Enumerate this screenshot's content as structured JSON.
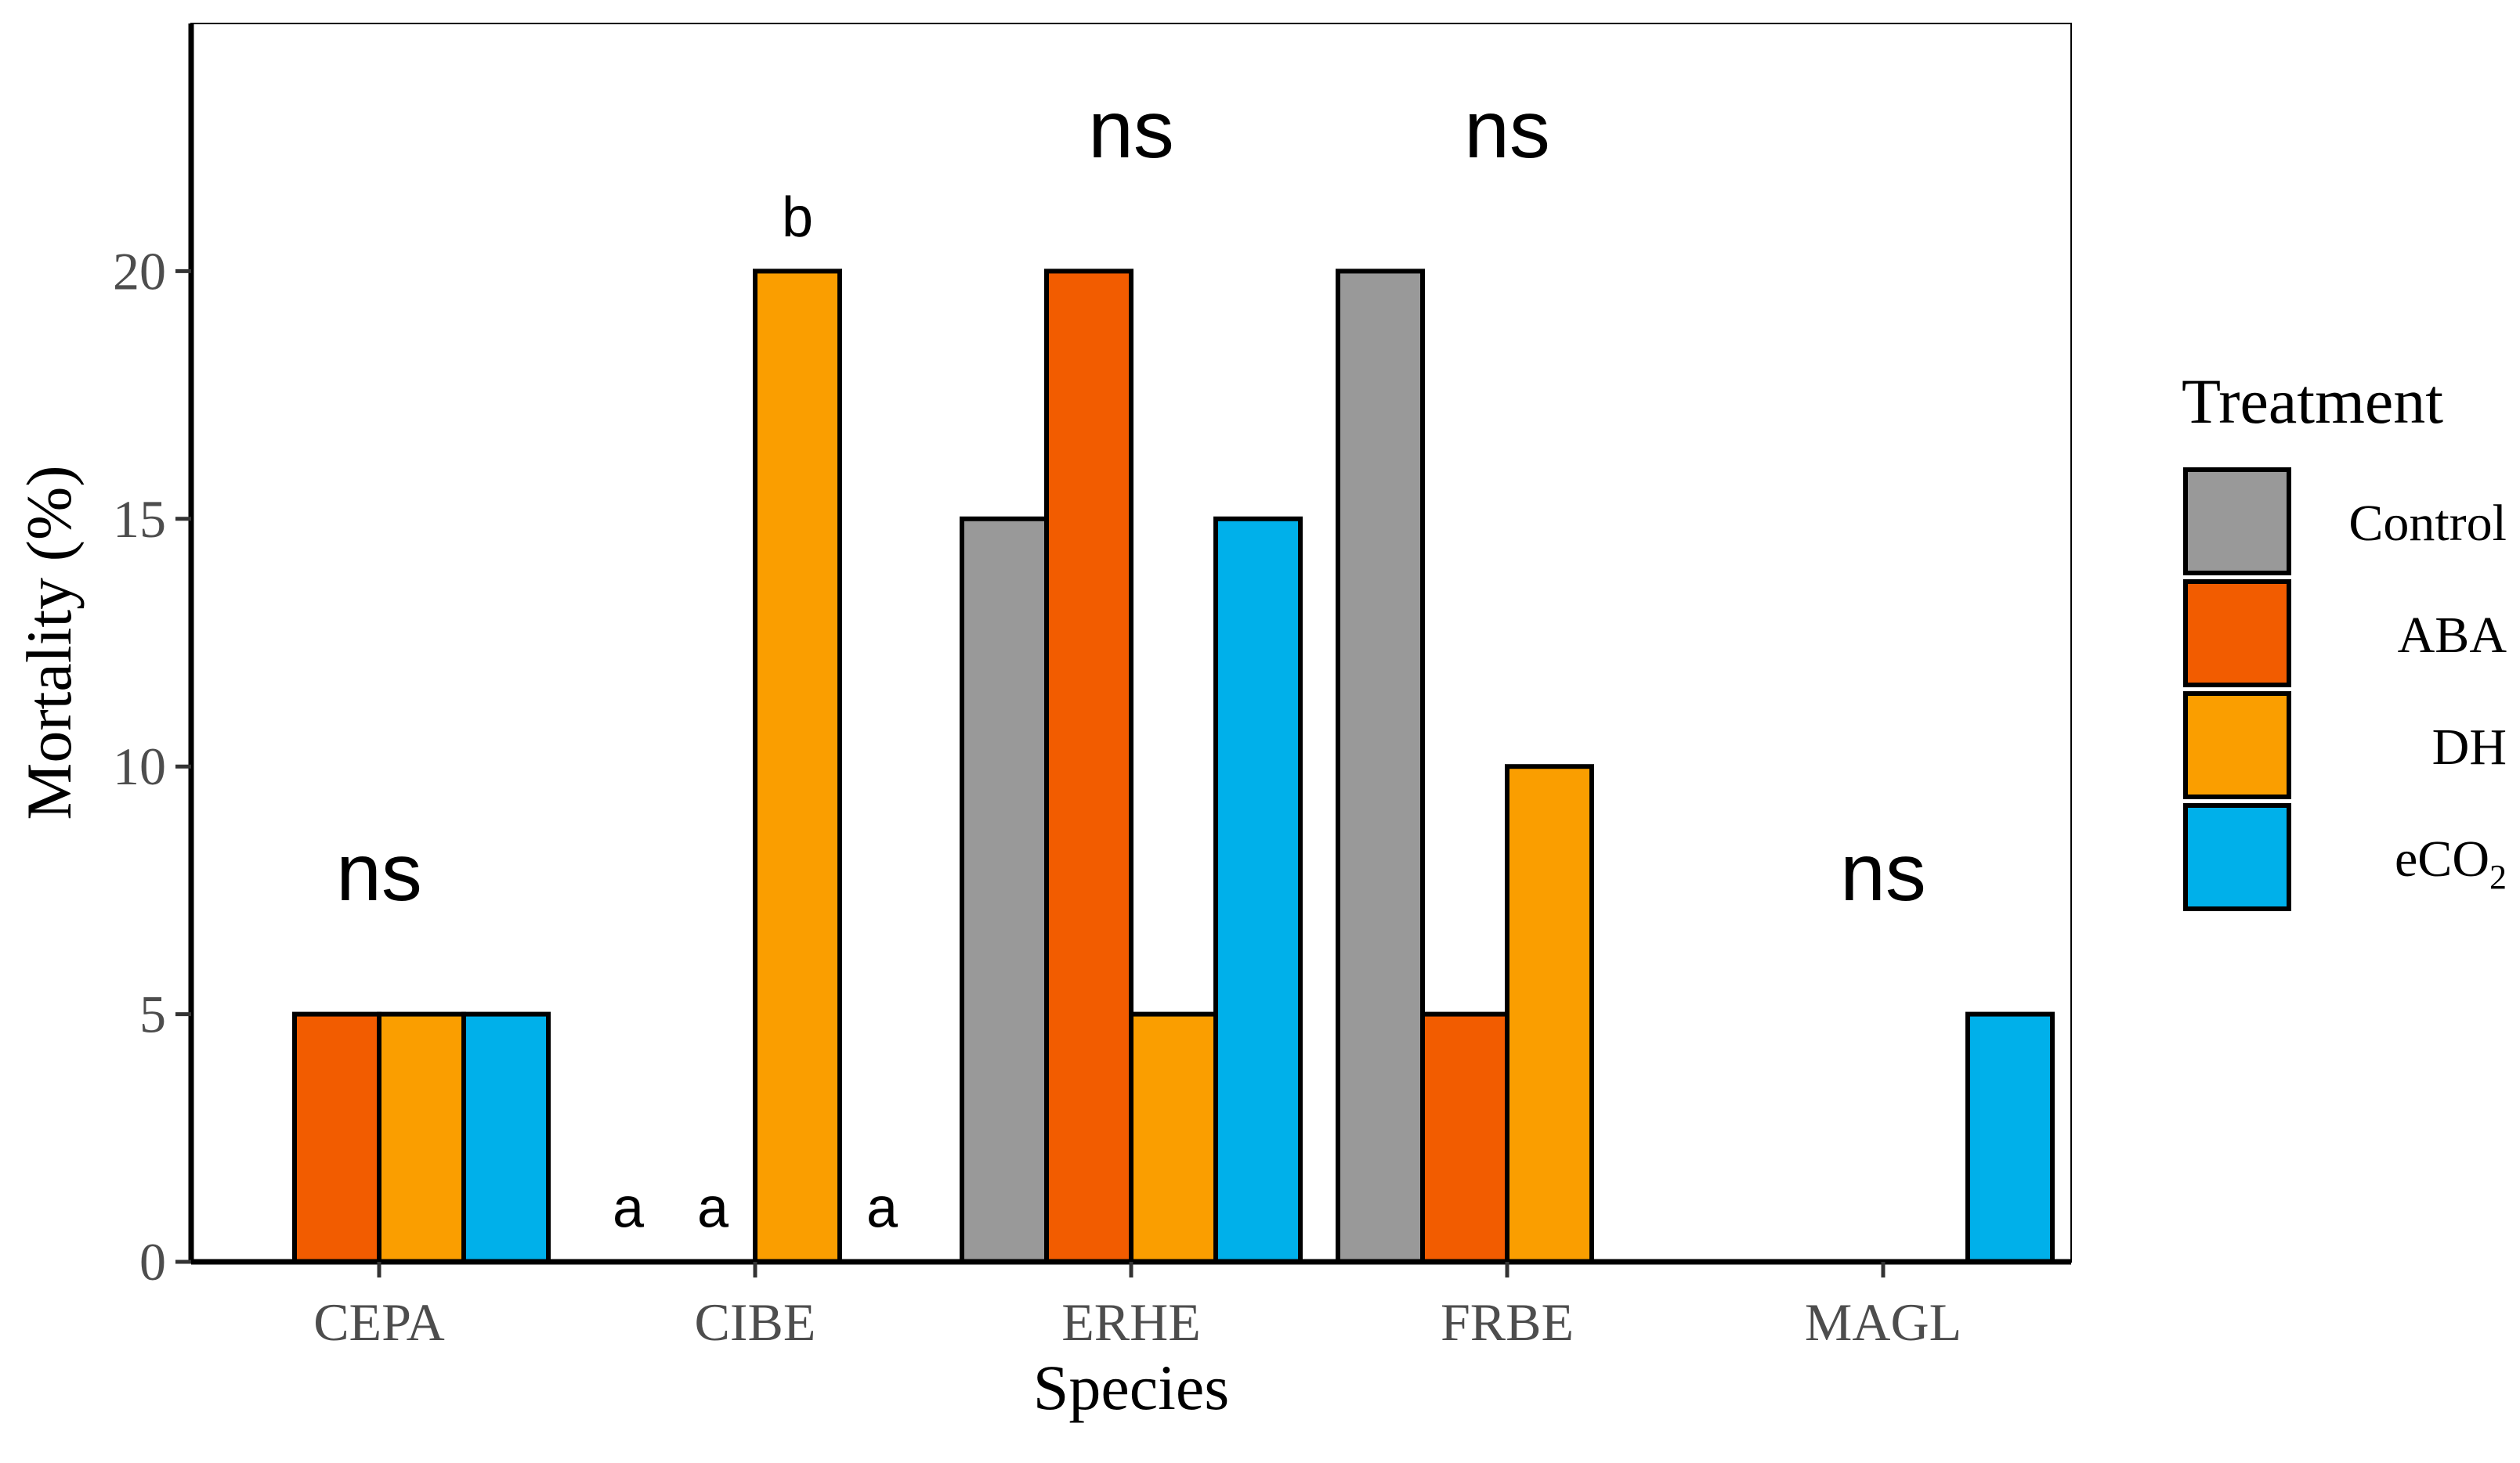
{
  "chart_data": {
    "type": "bar",
    "title": "",
    "xlabel": "Species",
    "ylabel": "Mortality (%)",
    "ylim": [
      0,
      25
    ],
    "yticks": [
      0,
      5,
      10,
      15,
      20
    ],
    "grid": false,
    "legend_position": "right",
    "legend_title": "Treatment",
    "categories": [
      "CEPA",
      "CIBE",
      "ERHE",
      "FRBE",
      "MAGL"
    ],
    "series": [
      {
        "name": "Control",
        "color": "#999999",
        "values": [
          0,
          0,
          15,
          20,
          0
        ]
      },
      {
        "name": "ABA",
        "color": "#F25C00",
        "values": [
          5,
          0,
          20,
          5,
          0
        ]
      },
      {
        "name": "DH",
        "color": "#FA9E00",
        "values": [
          5,
          20,
          5,
          10,
          0
        ]
      },
      {
        "name": "eCO2",
        "color": "#00B0EA",
        "values": [
          5,
          0,
          15,
          0,
          5
        ]
      }
    ],
    "group_annotations": [
      {
        "category": "CEPA",
        "text": "ns",
        "y": 7.3
      },
      {
        "category": "ERHE",
        "text": "ns",
        "y": 22.3
      },
      {
        "category": "FRBE",
        "text": "ns",
        "y": 22.3
      },
      {
        "category": "MAGL",
        "text": "ns",
        "y": 7.3
      }
    ],
    "bar_annotations": [
      {
        "category": "CIBE",
        "series": "Control",
        "text": "a",
        "y": 0.7
      },
      {
        "category": "CIBE",
        "series": "ABA",
        "text": "a",
        "y": 0.7
      },
      {
        "category": "CIBE",
        "series": "DH",
        "text": "b",
        "y": 20.7
      },
      {
        "category": "CIBE",
        "series": "eCO2",
        "text": "a",
        "y": 0.7
      }
    ]
  }
}
